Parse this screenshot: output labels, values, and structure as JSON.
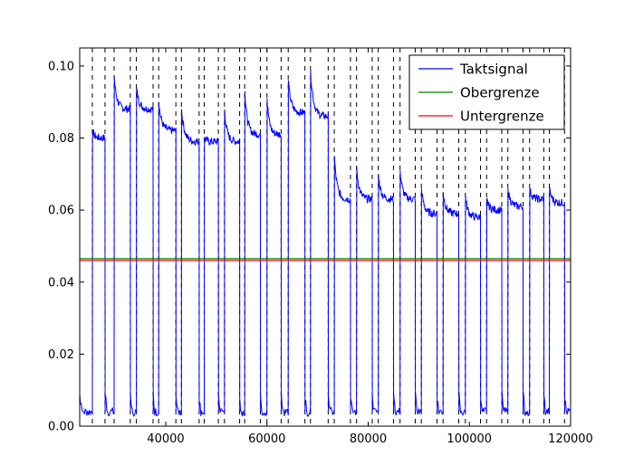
{
  "chart_data": {
    "type": "line",
    "title": "",
    "xlabel": "",
    "ylabel": "",
    "xlim": [
      23000,
      120000
    ],
    "ylim": [
      0.0,
      0.105
    ],
    "grid": false,
    "legend_position": "top-right",
    "x_ticks": [
      40000,
      60000,
      80000,
      100000,
      120000
    ],
    "x_tick_labels": [
      "40000",
      "60000",
      "80000",
      "100000",
      "120000"
    ],
    "y_ticks": [
      0.0,
      0.02,
      0.04,
      0.06,
      0.08,
      0.1
    ],
    "y_tick_labels": [
      "0.00",
      "0.02",
      "0.04",
      "0.06",
      "0.08",
      "0.10"
    ],
    "series": [
      {
        "name": "Taktsignal",
        "color": "#0000ff",
        "pulses": [
          {
            "start": 25500,
            "end": 28000,
            "high": 0.08,
            "peak": 0.082
          },
          {
            "start": 29800,
            "end": 33000,
            "high": 0.088,
            "peak": 0.097
          },
          {
            "start": 34200,
            "end": 37500,
            "high": 0.088,
            "peak": 0.094
          },
          {
            "start": 38600,
            "end": 42000,
            "high": 0.082,
            "peak": 0.09
          },
          {
            "start": 43100,
            "end": 46600,
            "high": 0.079,
            "peak": 0.088
          },
          {
            "start": 47600,
            "end": 50400,
            "high": 0.079,
            "peak": 0.08
          },
          {
            "start": 51600,
            "end": 54600,
            "high": 0.079,
            "peak": 0.088
          },
          {
            "start": 55600,
            "end": 58700,
            "high": 0.081,
            "peak": 0.093
          },
          {
            "start": 60000,
            "end": 62800,
            "high": 0.081,
            "peak": 0.091
          },
          {
            "start": 64200,
            "end": 67500,
            "high": 0.087,
            "peak": 0.096
          },
          {
            "start": 68600,
            "end": 72100,
            "high": 0.086,
            "peak": 0.099
          },
          {
            "start": 73300,
            "end": 76500,
            "high": 0.063,
            "peak": 0.075
          },
          {
            "start": 77700,
            "end": 80800,
            "high": 0.063,
            "peak": 0.072
          },
          {
            "start": 82000,
            "end": 85000,
            "high": 0.063,
            "peak": 0.07
          },
          {
            "start": 86300,
            "end": 89300,
            "high": 0.063,
            "peak": 0.071
          },
          {
            "start": 90500,
            "end": 93600,
            "high": 0.059,
            "peak": 0.066
          },
          {
            "start": 94800,
            "end": 97900,
            "high": 0.059,
            "peak": 0.065
          },
          {
            "start": 99200,
            "end": 102200,
            "high": 0.058,
            "peak": 0.064
          },
          {
            "start": 103400,
            "end": 106400,
            "high": 0.06,
            "peak": 0.063
          },
          {
            "start": 107600,
            "end": 110600,
            "high": 0.061,
            "peak": 0.066
          },
          {
            "start": 111900,
            "end": 114700,
            "high": 0.063,
            "peak": 0.066
          },
          {
            "start": 115800,
            "end": 118800,
            "high": 0.062,
            "peak": 0.066
          },
          {
            "start": 120000,
            "end": 120000,
            "high": 0.062,
            "peak": 0.064
          }
        ],
        "low_level": 0.004
      },
      {
        "name": "Obergrenze",
        "color": "#008000",
        "values": [
          0.0465,
          0.0465
        ],
        "x": [
          23000,
          120000
        ]
      },
      {
        "name": "Untergrenze",
        "color": "#ff0000",
        "values": [
          0.046,
          0.046
        ],
        "x": [
          23000,
          120000
        ]
      }
    ],
    "edge_markers_x": [
      25500,
      28000,
      29800,
      33000,
      34200,
      37500,
      38600,
      42000,
      43100,
      46600,
      47600,
      50400,
      51600,
      54600,
      55600,
      58700,
      60000,
      62800,
      64200,
      67500,
      68600,
      72100,
      73300,
      76500,
      77700,
      80800,
      82000,
      85000,
      86300,
      89300,
      90500,
      93600,
      94800,
      97900,
      99200,
      102200,
      103400,
      106400,
      107600,
      110600,
      111900,
      114700,
      115800,
      118800
    ]
  }
}
